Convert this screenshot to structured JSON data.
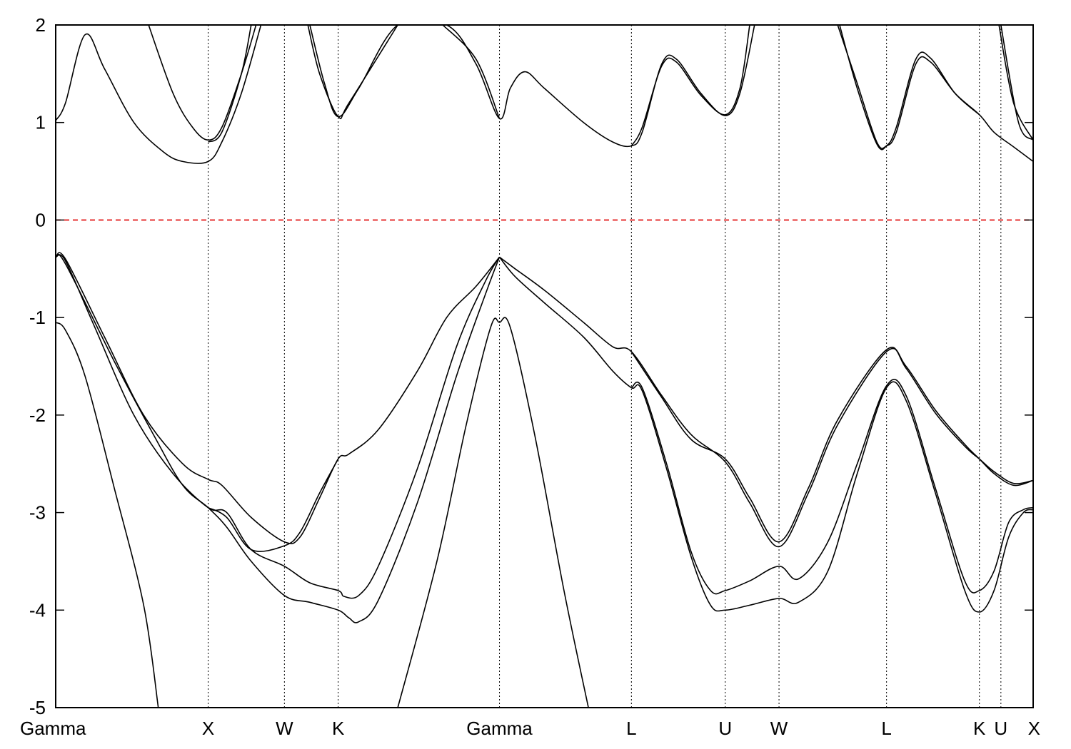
{
  "chart_data": {
    "type": "line",
    "title": "",
    "xlabel": "",
    "ylabel": "",
    "xlim": [
      0,
      1
    ],
    "ylim": [
      -5,
      2
    ],
    "grid": false,
    "y_ticks": [
      2,
      1,
      0,
      -1,
      -2,
      -3,
      -4,
      -5
    ],
    "y_tick_labels": [
      "2",
      "1",
      "0",
      "-1",
      "-2",
      "-3",
      "-4",
      "-5"
    ],
    "high_symmetry_points": [
      {
        "label": "Gamma",
        "x": 0.0
      },
      {
        "label": "X",
        "x": 0.156
      },
      {
        "label": "W",
        "x": 0.234
      },
      {
        "label": "K",
        "x": 0.289
      },
      {
        "label": "Gamma",
        "x": 0.454
      },
      {
        "label": "L",
        "x": 0.589
      },
      {
        "label": "U",
        "x": 0.685
      },
      {
        "label": "W",
        "x": 0.74
      },
      {
        "label": "L",
        "x": 0.85
      },
      {
        "label": "K",
        "x": 0.945
      },
      {
        "label": "U",
        "x": 0.967
      },
      {
        "label": "X",
        "x": 1.0
      }
    ],
    "reference_line": {
      "y": 0,
      "style": "dashed",
      "color": "#e00000"
    },
    "colors": {
      "bands": "#000000",
      "axes": "#000000",
      "fermi": "#e00000"
    },
    "series": [
      {
        "values": [
          [
            0.0,
            -5.0
          ],
          [
            0.003,
            -5.0
          ]
        ]
      },
      {
        "values": [
          [
            0.0,
            -1.05
          ],
          [
            0.01,
            -1.13
          ],
          [
            0.03,
            -1.6
          ],
          [
            0.06,
            -2.75
          ],
          [
            0.09,
            -3.95
          ],
          [
            0.105,
            -5.0
          ]
        ]
      },
      {
        "values": [
          [
            0.0,
            -0.38
          ],
          [
            0.01,
            -0.42
          ],
          [
            0.04,
            -1.1
          ],
          [
            0.08,
            -2.0
          ],
          [
            0.12,
            -2.6
          ],
          [
            0.156,
            -2.95
          ],
          [
            0.175,
            -3.0
          ],
          [
            0.2,
            -3.38
          ],
          [
            0.234,
            -3.55
          ],
          [
            0.26,
            -3.72
          ],
          [
            0.289,
            -3.8
          ],
          [
            0.295,
            -3.86
          ],
          [
            0.31,
            -3.85
          ],
          [
            0.33,
            -3.55
          ],
          [
            0.37,
            -2.55
          ],
          [
            0.41,
            -1.3
          ],
          [
            0.44,
            -0.62
          ],
          [
            0.454,
            -0.38
          ]
        ]
      },
      {
        "values": [
          [
            0.0,
            -0.38
          ],
          [
            0.01,
            -0.4
          ],
          [
            0.05,
            -1.2
          ],
          [
            0.09,
            -2.0
          ],
          [
            0.13,
            -2.5
          ],
          [
            0.156,
            -2.66
          ],
          [
            0.17,
            -2.72
          ],
          [
            0.2,
            -3.05
          ],
          [
            0.234,
            -3.3
          ],
          [
            0.25,
            -3.25
          ],
          [
            0.27,
            -2.85
          ],
          [
            0.289,
            -2.45
          ],
          [
            0.3,
            -2.4
          ],
          [
            0.33,
            -2.15
          ],
          [
            0.37,
            -1.55
          ],
          [
            0.4,
            -1.0
          ],
          [
            0.43,
            -0.68
          ],
          [
            0.454,
            -0.38
          ]
        ]
      },
      {
        "values": [
          [
            0.0,
            -0.38
          ],
          [
            0.01,
            -0.45
          ],
          [
            0.06,
            -1.45
          ],
          [
            0.1,
            -2.2
          ],
          [
            0.13,
            -2.72
          ],
          [
            0.156,
            -2.95
          ],
          [
            0.175,
            -3.15
          ],
          [
            0.2,
            -3.5
          ],
          [
            0.234,
            -3.85
          ],
          [
            0.26,
            -3.92
          ],
          [
            0.289,
            -4.0
          ],
          [
            0.3,
            -4.08
          ],
          [
            0.31,
            -4.12
          ],
          [
            0.33,
            -3.9
          ],
          [
            0.37,
            -2.9
          ],
          [
            0.41,
            -1.6
          ],
          [
            0.44,
            -0.75
          ],
          [
            0.454,
            -0.38
          ]
        ]
      },
      {
        "values": [
          [
            0.156,
            -2.95
          ],
          [
            0.175,
            -3.05
          ],
          [
            0.2,
            -3.38
          ],
          [
            0.234,
            -3.34
          ],
          [
            0.25,
            -3.2
          ],
          [
            0.27,
            -2.8
          ],
          [
            0.289,
            -2.45
          ]
        ]
      },
      {
        "values": [
          [
            0.35,
            -5.0
          ],
          [
            0.39,
            -3.5
          ],
          [
            0.42,
            -2.1
          ],
          [
            0.445,
            -1.1
          ],
          [
            0.454,
            -1.05
          ],
          [
            0.465,
            -1.1
          ],
          [
            0.49,
            -2.2
          ],
          [
            0.52,
            -3.8
          ],
          [
            0.545,
            -5.0
          ]
        ]
      },
      {
        "values": [
          [
            0.454,
            -0.38
          ],
          [
            0.47,
            -0.58
          ],
          [
            0.5,
            -0.85
          ],
          [
            0.54,
            -1.2
          ],
          [
            0.57,
            -1.55
          ],
          [
            0.589,
            -1.72
          ],
          [
            0.6,
            -1.75
          ],
          [
            0.625,
            -2.55
          ],
          [
            0.65,
            -3.45
          ],
          [
            0.67,
            -3.95
          ],
          [
            0.685,
            -4.0
          ],
          [
            0.71,
            -3.95
          ],
          [
            0.74,
            -3.88
          ],
          [
            0.76,
            -3.92
          ],
          [
            0.79,
            -3.6
          ],
          [
            0.82,
            -2.6
          ],
          [
            0.85,
            -1.72
          ],
          [
            0.87,
            -1.85
          ],
          [
            0.9,
            -2.8
          ],
          [
            0.93,
            -3.8
          ],
          [
            0.945,
            -4.02
          ],
          [
            0.96,
            -3.8
          ],
          [
            0.975,
            -3.25
          ],
          [
            0.99,
            -3.0
          ],
          [
            1.0,
            -2.97
          ]
        ]
      },
      {
        "values": [
          [
            0.454,
            -0.38
          ],
          [
            0.47,
            -0.5
          ],
          [
            0.5,
            -0.72
          ],
          [
            0.54,
            -1.05
          ],
          [
            0.57,
            -1.3
          ],
          [
            0.589,
            -1.35
          ],
          [
            0.62,
            -1.8
          ],
          [
            0.65,
            -2.2
          ],
          [
            0.685,
            -2.48
          ],
          [
            0.71,
            -2.9
          ],
          [
            0.74,
            -3.35
          ],
          [
            0.77,
            -2.8
          ],
          [
            0.8,
            -2.1
          ],
          [
            0.85,
            -1.35
          ],
          [
            0.87,
            -1.5
          ],
          [
            0.9,
            -1.95
          ],
          [
            0.93,
            -2.3
          ],
          [
            0.945,
            -2.45
          ],
          [
            0.96,
            -2.6
          ],
          [
            0.98,
            -2.72
          ],
          [
            1.0,
            -2.67
          ]
        ]
      },
      {
        "values": [
          [
            0.589,
            -1.35
          ],
          [
            0.62,
            -1.82
          ],
          [
            0.65,
            -2.25
          ],
          [
            0.685,
            -2.45
          ],
          [
            0.71,
            -2.85
          ],
          [
            0.74,
            -3.3
          ],
          [
            0.77,
            -2.75
          ],
          [
            0.8,
            -2.05
          ],
          [
            0.85,
            -1.33
          ],
          [
            0.87,
            -1.52
          ],
          [
            0.9,
            -1.98
          ],
          [
            0.93,
            -2.32
          ],
          [
            0.945,
            -2.45
          ],
          [
            0.96,
            -2.58
          ],
          [
            0.98,
            -2.7
          ],
          [
            1.0,
            -2.67
          ]
        ]
      },
      {
        "values": [
          [
            0.589,
            -1.72
          ],
          [
            0.6,
            -1.72
          ],
          [
            0.625,
            -2.5
          ],
          [
            0.65,
            -3.4
          ],
          [
            0.67,
            -3.8
          ],
          [
            0.685,
            -3.8
          ],
          [
            0.71,
            -3.7
          ],
          [
            0.74,
            -3.55
          ],
          [
            0.76,
            -3.68
          ],
          [
            0.79,
            -3.3
          ],
          [
            0.82,
            -2.5
          ],
          [
            0.85,
            -1.7
          ],
          [
            0.87,
            -1.8
          ],
          [
            0.9,
            -2.75
          ],
          [
            0.93,
            -3.7
          ],
          [
            0.945,
            -3.8
          ],
          [
            0.96,
            -3.6
          ],
          [
            0.975,
            -3.1
          ],
          [
            0.99,
            -2.97
          ],
          [
            1.0,
            -2.95
          ]
        ]
      },
      {
        "values": [
          [
            0.0,
            1.02
          ],
          [
            0.01,
            1.2
          ],
          [
            0.03,
            1.9
          ],
          [
            0.05,
            1.55
          ],
          [
            0.08,
            1.0
          ],
          [
            0.11,
            0.7
          ],
          [
            0.13,
            0.6
          ],
          [
            0.156,
            0.6
          ],
          [
            0.17,
            0.8
          ],
          [
            0.19,
            1.3
          ],
          [
            0.21,
            2.0
          ]
        ]
      },
      {
        "values": [
          [
            0.095,
            2.0
          ],
          [
            0.12,
            1.3
          ],
          [
            0.14,
            0.95
          ],
          [
            0.156,
            0.82
          ],
          [
            0.17,
            0.95
          ],
          [
            0.19,
            1.5
          ],
          [
            0.205,
            2.0
          ]
        ]
      },
      {
        "values": [
          [
            0.156,
            0.8
          ],
          [
            0.17,
            0.9
          ],
          [
            0.19,
            1.5
          ],
          [
            0.2,
            2.0
          ]
        ]
      },
      {
        "values": [
          [
            0.26,
            2.0
          ],
          [
            0.275,
            1.4
          ],
          [
            0.289,
            1.06
          ],
          [
            0.31,
            1.35
          ],
          [
            0.35,
            2.0
          ],
          [
            0.4,
            2.0
          ],
          [
            0.43,
            1.6
          ],
          [
            0.454,
            1.04
          ],
          [
            0.465,
            1.35
          ],
          [
            0.48,
            1.52
          ],
          [
            0.5,
            1.35
          ],
          [
            0.54,
            1.0
          ],
          [
            0.57,
            0.8
          ],
          [
            0.589,
            0.76
          ],
          [
            0.6,
            0.9
          ],
          [
            0.62,
            1.6
          ],
          [
            0.635,
            1.65
          ],
          [
            0.66,
            1.3
          ],
          [
            0.685,
            1.07
          ],
          [
            0.7,
            1.3
          ],
          [
            0.715,
            2.0
          ]
        ]
      },
      {
        "values": [
          [
            0.258,
            2.0
          ],
          [
            0.27,
            1.5
          ],
          [
            0.289,
            1.06
          ],
          [
            0.3,
            1.2
          ],
          [
            0.35,
            2.0
          ]
        ]
      },
      {
        "values": [
          [
            0.396,
            2.0
          ],
          [
            0.43,
            1.65
          ],
          [
            0.454,
            1.04
          ]
        ]
      },
      {
        "values": [
          [
            0.589,
            0.76
          ],
          [
            0.6,
            0.95
          ],
          [
            0.62,
            1.58
          ],
          [
            0.635,
            1.62
          ],
          [
            0.66,
            1.28
          ],
          [
            0.685,
            1.08
          ],
          [
            0.7,
            1.35
          ],
          [
            0.71,
            2.0
          ]
        ]
      },
      {
        "values": [
          [
            0.8,
            2.0
          ],
          [
            0.82,
            1.4
          ],
          [
            0.84,
            0.8
          ],
          [
            0.85,
            0.76
          ],
          [
            0.86,
            0.9
          ],
          [
            0.88,
            1.6
          ],
          [
            0.895,
            1.62
          ],
          [
            0.92,
            1.3
          ],
          [
            0.945,
            1.08
          ],
          [
            0.96,
            0.9
          ],
          [
            0.98,
            0.75
          ],
          [
            1.0,
            0.6
          ]
        ]
      },
      {
        "values": [
          [
            0.802,
            2.0
          ],
          [
            0.82,
            1.35
          ],
          [
            0.84,
            0.78
          ],
          [
            0.85,
            0.76
          ],
          [
            0.86,
            0.95
          ],
          [
            0.88,
            1.65
          ],
          [
            0.895,
            1.66
          ],
          [
            0.92,
            1.3
          ],
          [
            0.945,
            1.08
          ]
        ]
      },
      {
        "values": [
          [
            0.965,
            2.0
          ],
          [
            0.98,
            1.2
          ],
          [
            1.0,
            0.82
          ]
        ]
      },
      {
        "values": [
          [
            0.967,
            2.0
          ],
          [
            0.985,
            1.0
          ],
          [
            1.0,
            0.82
          ]
        ]
      }
    ]
  }
}
